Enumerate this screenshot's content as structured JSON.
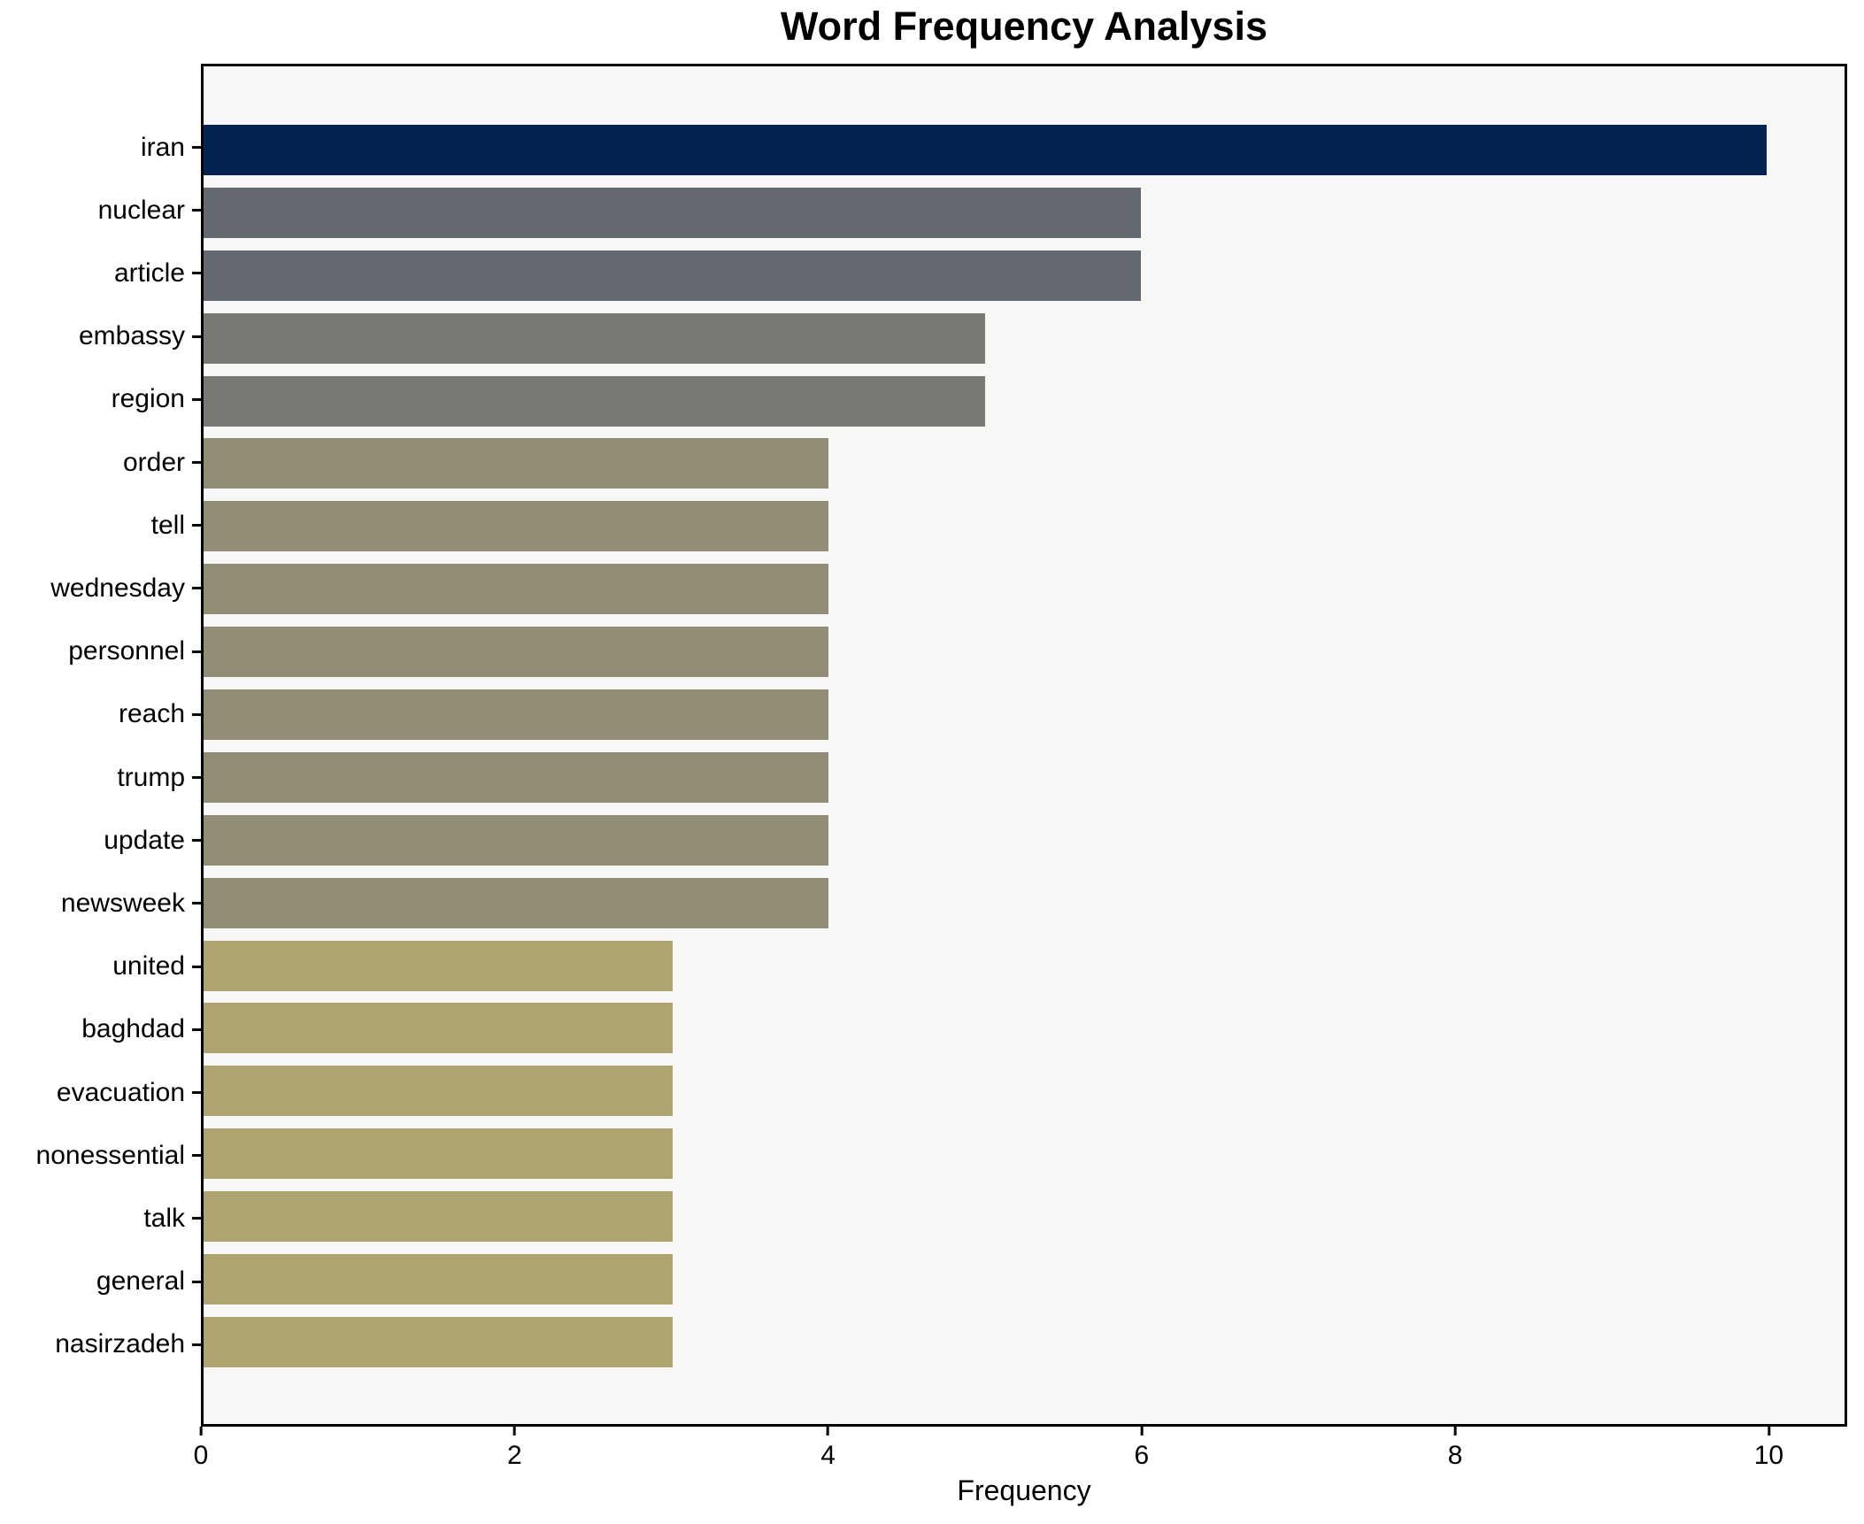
{
  "chart_data": {
    "type": "bar",
    "orientation": "horizontal",
    "title": "Word Frequency Analysis",
    "xlabel": "Frequency",
    "ylabel": "",
    "categories": [
      "iran",
      "nuclear",
      "article",
      "embassy",
      "region",
      "order",
      "tell",
      "wednesday",
      "personnel",
      "reach",
      "trump",
      "update",
      "newsweek",
      "united",
      "baghdad",
      "evacuation",
      "nonessential",
      "talk",
      "general",
      "nasirzadeh"
    ],
    "values": [
      10,
      6,
      6,
      5,
      5,
      4,
      4,
      4,
      4,
      4,
      4,
      4,
      4,
      3,
      3,
      3,
      3,
      3,
      3,
      3
    ],
    "bar_colors": [
      "#052350",
      "#646870",
      "#646870",
      "#7b7973",
      "#7b7973",
      "#928d77",
      "#928d77",
      "#928d77",
      "#928d77",
      "#928d77",
      "#928d77",
      "#928d77",
      "#928d77",
      "#ada46f",
      "#ada46f",
      "#ada46f",
      "#ada46f",
      "#ada46f",
      "#ada46f",
      "#ada46f"
    ],
    "x_ticks": [
      0,
      2,
      4,
      6,
      8,
      10
    ],
    "xlim": [
      0,
      10.5
    ],
    "grid": false,
    "legend": false,
    "plot_background": "#f7f7f6",
    "figure_background": "#ffffff",
    "axis_color": "#000000"
  }
}
